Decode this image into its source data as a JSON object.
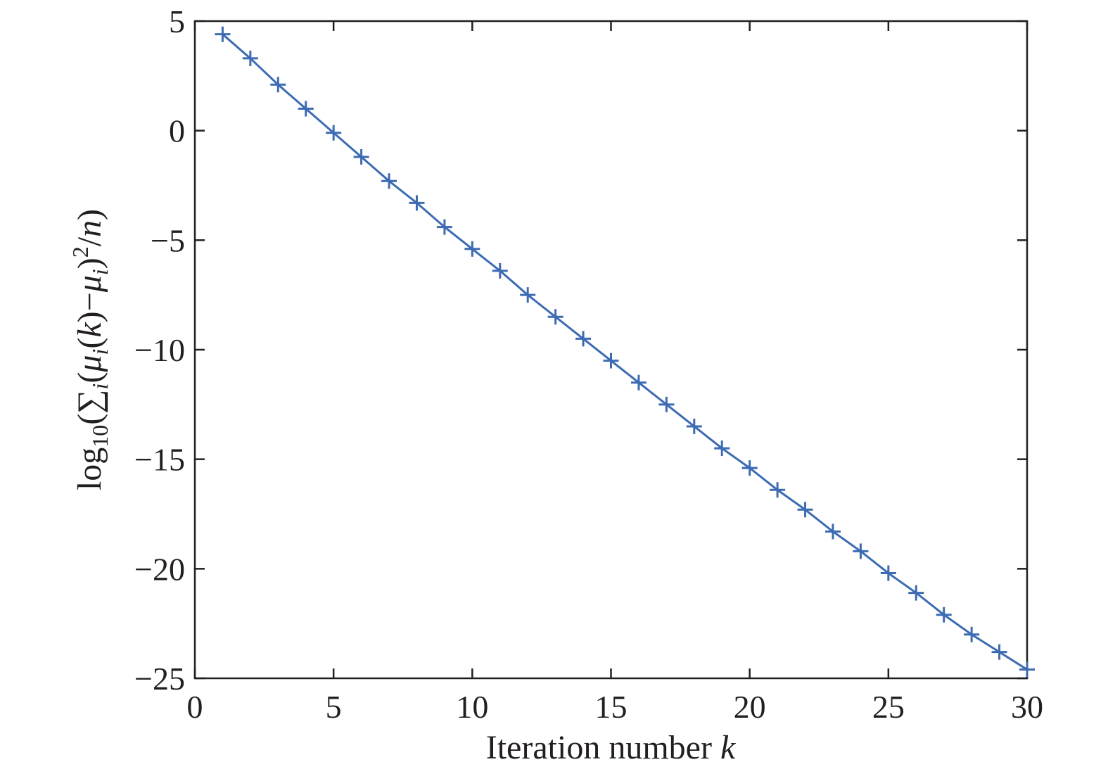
{
  "chart_data": {
    "type": "line",
    "title": "",
    "xlabel": {
      "text": "Iteration number ",
      "var": "k"
    },
    "ylabel": {
      "log": "log",
      "log_sub": "10",
      "open": "(",
      "sum": "∑",
      "sum_sub": "i",
      "p1": "(",
      "mu": "μ",
      "mu_sub": "i",
      "arg": "(",
      "k": "k",
      "close_arg": ")",
      "minus": "−",
      "mu2": "μ",
      "mu2_sub": "i",
      "close1": ")",
      "sq": "2",
      "slash": "/",
      "n": "n",
      "close2": ")"
    },
    "xlim": [
      0,
      30
    ],
    "ylim": [
      -25,
      5
    ],
    "xticks": [
      0,
      5,
      10,
      15,
      20,
      25,
      30
    ],
    "yticks": [
      5,
      0,
      -5,
      -10,
      -15,
      -20,
      -25
    ],
    "xtick_labels": [
      "0",
      "5",
      "10",
      "15",
      "20",
      "25",
      "30"
    ],
    "ytick_labels": [
      "5",
      "0",
      "−5",
      "−10",
      "−15",
      "−20",
      "−25"
    ],
    "grid": false,
    "line_color": "#3d6bb3",
    "marker": "plus",
    "series": [
      {
        "x": [
          1,
          2,
          3,
          4,
          5,
          6,
          7,
          8,
          9,
          10,
          11,
          12,
          13,
          14,
          15,
          16,
          17,
          18,
          19,
          20,
          21,
          22,
          23,
          24,
          25,
          26,
          27,
          28,
          29,
          30
        ],
        "values": [
          4.4,
          3.3,
          2.1,
          1.0,
          -0.1,
          -1.2,
          -2.3,
          -3.3,
          -4.4,
          -5.4,
          -6.4,
          -7.5,
          -8.5,
          -9.5,
          -10.5,
          -11.5,
          -12.5,
          -13.5,
          -14.5,
          -15.4,
          -16.4,
          -17.3,
          -18.3,
          -19.2,
          -20.2,
          -21.1,
          -22.1,
          -23.0,
          -23.8,
          -24.6
        ]
      }
    ]
  }
}
